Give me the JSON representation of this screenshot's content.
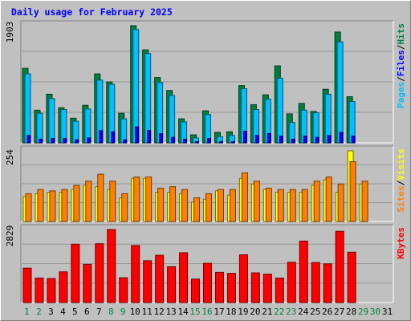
{
  "chart_data": {
    "type": "bar",
    "title": "Daily usage for February 2025",
    "days": [
      "1",
      "2",
      "3",
      "4",
      "5",
      "6",
      "7",
      "8",
      "9",
      "10",
      "11",
      "12",
      "13",
      "14",
      "15",
      "16",
      "17",
      "18",
      "19",
      "20",
      "21",
      "22",
      "23",
      "24",
      "25",
      "26",
      "27",
      "28",
      "29",
      "30",
      "31"
    ],
    "weekend_days": [
      1,
      2,
      8,
      9,
      15,
      16,
      22,
      23,
      29,
      30
    ],
    "colors": {
      "hits": "#008040",
      "files": "#00c0ff",
      "pages": "#0000ff",
      "visits": "#ffff00",
      "sites": "#ff8000",
      "kbytes": "#ff0000",
      "title": "#0000ff",
      "day_weekday": "#000000",
      "day_weekend": "#008040"
    },
    "panels": [
      {
        "id": "usage",
        "max_label": "1903",
        "ymax": 1903,
        "legend": [
          {
            "label": "Pages",
            "color": "#00c0ff"
          },
          {
            "label": "/",
            "color": "#000000"
          },
          {
            "label": "Files",
            "color": "#0000ff"
          },
          {
            "label": "/",
            "color": "#000000"
          },
          {
            "label": "Hits",
            "color": "#008040"
          }
        ],
        "series": [
          {
            "name": "Hits",
            "color": "#008040",
            "values": [
              1210,
              530,
              790,
              570,
              400,
              610,
              1120,
              990,
              480,
              1903,
              1510,
              1060,
              850,
              390,
              130,
              520,
              170,
              180,
              930,
              620,
              780,
              1250,
              470,
              640,
              510,
              870,
              1800,
              750,
              0,
              0,
              0
            ]
          },
          {
            "name": "Files",
            "color": "#00c0ff",
            "values": [
              1120,
              480,
              720,
              540,
              350,
              550,
              1020,
              950,
              390,
              1840,
              1450,
              980,
              770,
              340,
              80,
              460,
              100,
              120,
              880,
              540,
              710,
              1050,
              330,
              530,
              490,
              790,
              1640,
              670,
              0,
              0,
              0
            ]
          },
          {
            "name": "Pages",
            "color": "#0000ff",
            "values": [
              120,
              60,
              70,
              70,
              50,
              80,
              200,
              180,
              50,
              260,
              200,
              150,
              90,
              60,
              20,
              70,
              20,
              20,
              190,
              120,
              150,
              110,
              60,
              110,
              90,
              120,
              170,
              110,
              0,
              0,
              0
            ]
          }
        ]
      },
      {
        "id": "visits",
        "max_label": "254",
        "ymax": 254,
        "legend": [
          {
            "label": "Sites",
            "color": "#ff8000"
          },
          {
            "label": "/",
            "color": "#000000"
          },
          {
            "label": "Visits",
            "color": "#ffff00"
          }
        ],
        "series": [
          {
            "name": "Visits",
            "color": "#ffff00",
            "values": [
              90,
              100,
              105,
              105,
              115,
              130,
              125,
              115,
              85,
              155,
              155,
              105,
              105,
              100,
              70,
              80,
              110,
              95,
              155,
              135,
              115,
              105,
              105,
              105,
              130,
              150,
              105,
              254,
              135,
              0,
              0
            ]
          },
          {
            "name": "Sites",
            "color": "#ff8000",
            "values": [
              100,
              115,
              110,
              115,
              130,
              145,
              170,
              145,
              100,
              160,
              160,
              120,
              125,
              115,
              85,
              100,
              115,
              115,
              175,
              145,
              120,
              115,
              115,
              115,
              145,
              160,
              135,
              215,
              145,
              0,
              0
            ]
          }
        ]
      },
      {
        "id": "kbytes",
        "max_label": "2829",
        "ymax": 2829,
        "legend": [
          {
            "label": "KBytes",
            "color": "#ff0000"
          }
        ],
        "series": [
          {
            "name": "KBytes",
            "color": "#ff0000",
            "values": [
              1330,
              950,
              930,
              1190,
              2260,
              1480,
              2280,
              2829,
              960,
              2210,
              1620,
              1830,
              1390,
              1930,
              910,
              1520,
              1170,
              1130,
              1850,
              1150,
              1100,
              950,
              1560,
              2380,
              1550,
              1500,
              2760,
              1950,
              0,
              0,
              0
            ]
          }
        ]
      }
    ]
  }
}
